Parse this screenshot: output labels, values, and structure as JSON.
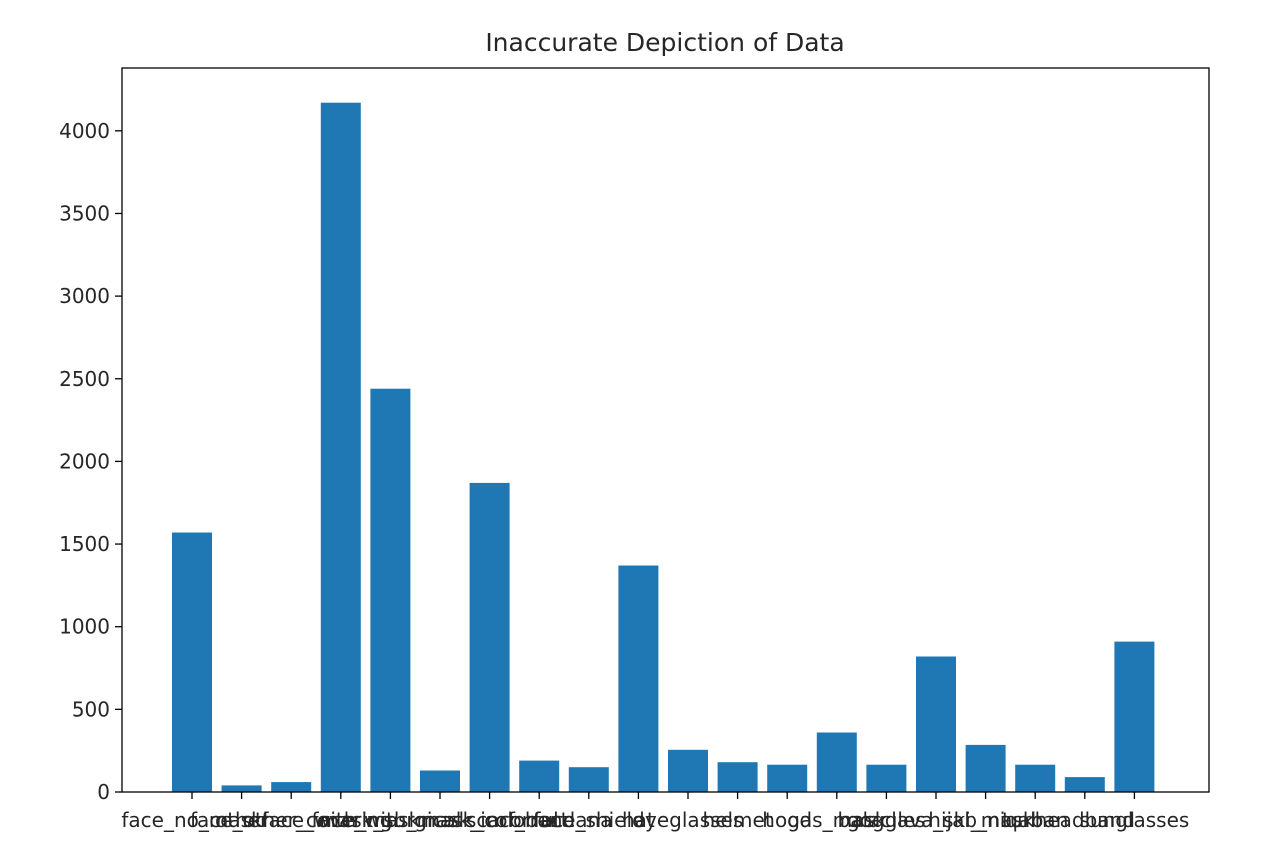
{
  "chart_data": {
    "type": "bar",
    "title": "Inaccurate Depiction of Data",
    "xlabel": "",
    "ylabel": "",
    "categories": [
      "face_no_mask",
      "other",
      "face_other_covering",
      "face_with_mask",
      "mask_surgical",
      "face_with_mask_incorrect",
      "mask_colorful",
      "scarf_bandana",
      "face_shield",
      "hat",
      "eyeglasses",
      "helmet",
      "hood",
      "gas_mask",
      "goggles",
      "balaclava_ski_mask",
      "hijab_niqab",
      "turban",
      "headband",
      "sunglasses"
    ],
    "values": [
      1570,
      40,
      60,
      4170,
      2440,
      130,
      1870,
      190,
      150,
      1370,
      255,
      180,
      165,
      360,
      165,
      820,
      285,
      165,
      90,
      910
    ],
    "ylim": [
      0,
      4380
    ],
    "yticks": [
      0,
      500,
      1000,
      1500,
      2000,
      2500,
      3000,
      3500,
      4000
    ],
    "bar_color": "#1f77b4",
    "grid": false
  }
}
